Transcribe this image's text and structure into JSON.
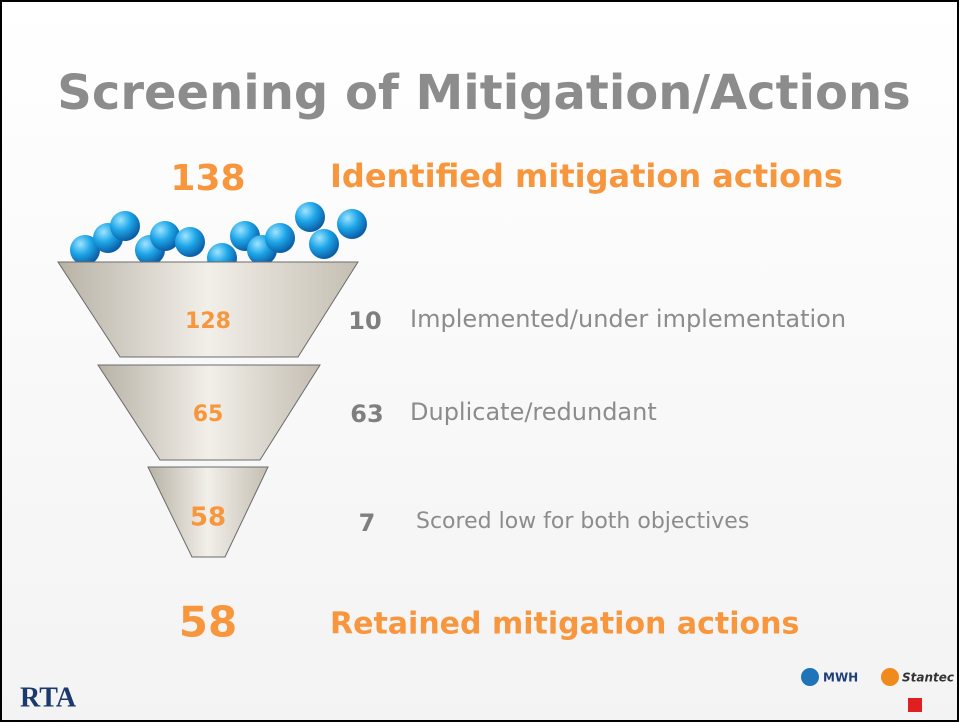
{
  "title": "Screening of Mitigation/Actions",
  "identified": {
    "count": 138,
    "label": "Identified mitigation actions"
  },
  "stages": [
    {
      "remaining": 128,
      "removed": 10,
      "reason": "Implemented/under implementation"
    },
    {
      "remaining": 65,
      "removed": 63,
      "reason": "Duplicate/redundant"
    },
    {
      "remaining": 58,
      "removed": 7,
      "reason": "Scored low for both objectives"
    }
  ],
  "retained": {
    "count": 58,
    "label": "Retained mitigation actions"
  },
  "logos": {
    "left": "RTA",
    "right": [
      "MWH",
      "Stantec"
    ]
  }
}
